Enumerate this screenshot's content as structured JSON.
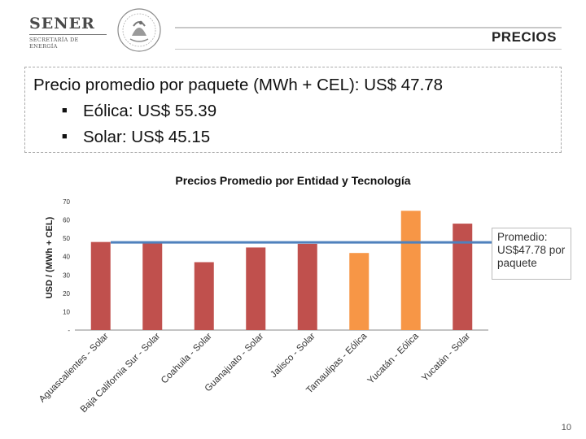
{
  "header": {
    "logo_title": "SENER",
    "logo_subtitle": "SECRETARÍA DE ENERGÍA",
    "page_title": "PRECIOS",
    "emblem_icon": "mexican-coat-of-arms-icon"
  },
  "summary": {
    "main": "Precio promedio por paquete (MWh + CEL): US$ 47.78",
    "bullets": [
      "Eólica: US$ 55.39",
      "Solar: US$ 45.15"
    ],
    "bullet_glyph": "■"
  },
  "chart_data": {
    "type": "bar",
    "title": "Precios Promedio por Entidad y Tecnología",
    "xlabel": "",
    "ylabel": "USD / (MWh + CEL)",
    "ylim": [
      0,
      70
    ],
    "yticks": [
      0,
      10,
      20,
      30,
      40,
      50,
      60,
      70
    ],
    "ytick_labels": [
      "-",
      "10",
      "20",
      "30",
      "40",
      "50",
      "60",
      "70"
    ],
    "categories": [
      "Aguascalientes - Solar",
      "Baja California Sur - Solar",
      "Coahuila - Solar",
      "Guanajuato - Solar",
      "Jalisco - Solar",
      "Tamaulipas - Eólica",
      "Yucatán - Eólica",
      "Yucatán - Solar"
    ],
    "values": [
      48,
      48,
      37,
      45,
      47,
      42,
      65,
      58
    ],
    "technology": [
      "Solar",
      "Solar",
      "Solar",
      "Solar",
      "Solar",
      "Eólica",
      "Eólica",
      "Solar"
    ],
    "colors": {
      "Solar": "#c0504d",
      "Eólica": "#f79646",
      "average_line": "#4f81bd"
    },
    "average": 47.78,
    "average_label": "Promedio: US$47.78 por paquete",
    "grid": false
  },
  "footer": {
    "page_number": "10"
  }
}
